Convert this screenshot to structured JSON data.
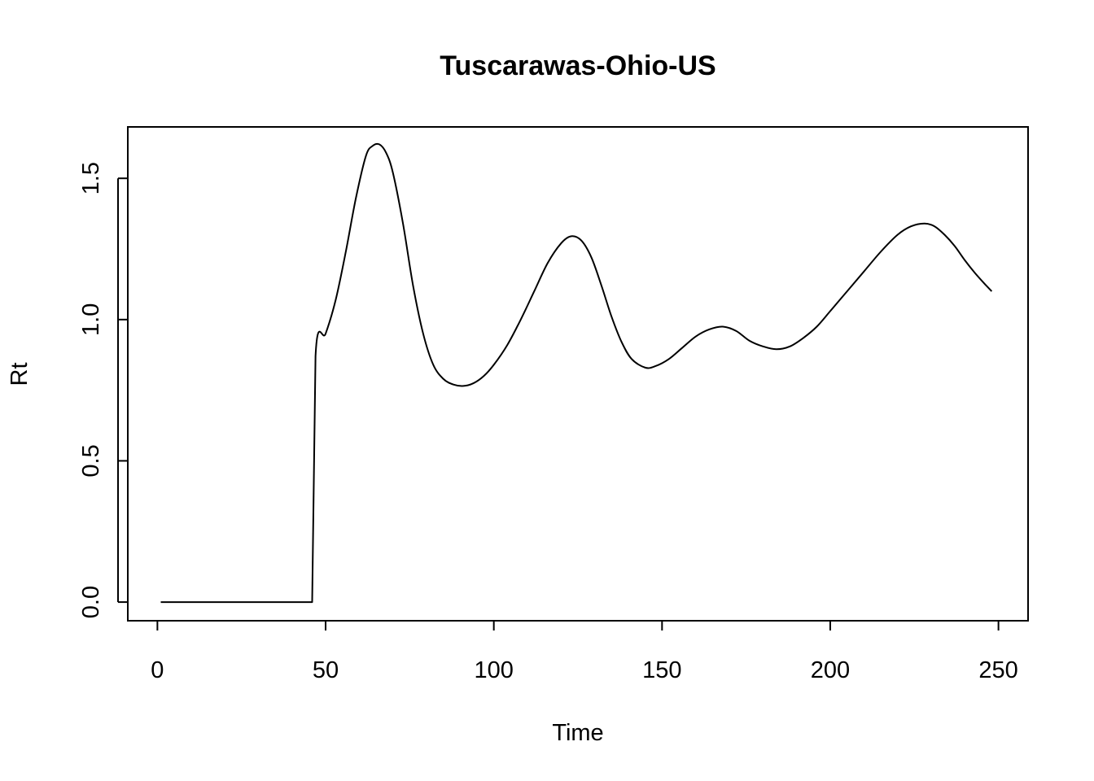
{
  "chart_data": {
    "type": "line",
    "title": "Tuscarawas-Ohio-US",
    "xlabel": "Time",
    "ylabel": "Rt",
    "xlim": [
      -8.8,
      258.8
    ],
    "ylim": [
      -0.066,
      1.682
    ],
    "x_ticks": [
      0,
      50,
      100,
      150,
      200,
      250
    ],
    "x_tick_labels": [
      "0",
      "50",
      "100",
      "150",
      "200",
      "250"
    ],
    "y_ticks": [
      0.0,
      0.5,
      1.0,
      1.5
    ],
    "y_tick_labels": [
      "0.0",
      "0.5",
      "1.0",
      "1.5"
    ],
    "grid": false,
    "legend": "none",
    "line_color": "#000000",
    "series": [
      {
        "x": [
          1,
          46,
          47,
          50,
          53,
          56,
          59,
          62,
          64,
          66,
          68,
          70,
          73,
          76,
          79,
          82,
          85,
          88,
          91,
          94,
          97,
          100,
          104,
          108,
          112,
          116,
          120,
          123,
          126,
          129,
          132,
          135,
          138,
          141,
          145,
          148,
          152,
          156,
          160,
          164,
          168,
          172,
          176,
          180,
          184,
          188,
          192,
          196,
          200,
          205,
          210,
          215,
          220,
          224,
          228,
          231,
          234,
          237,
          240,
          243,
          246,
          248
        ],
        "y": [
          0.0,
          0.0,
          0.87,
          0.95,
          1.07,
          1.24,
          1.43,
          1.58,
          1.615,
          1.62,
          1.59,
          1.52,
          1.34,
          1.12,
          0.95,
          0.84,
          0.79,
          0.77,
          0.765,
          0.775,
          0.8,
          0.84,
          0.91,
          1.0,
          1.1,
          1.2,
          1.27,
          1.295,
          1.28,
          1.22,
          1.12,
          1.01,
          0.92,
          0.86,
          0.83,
          0.835,
          0.86,
          0.9,
          0.94,
          0.965,
          0.975,
          0.96,
          0.925,
          0.905,
          0.895,
          0.905,
          0.935,
          0.975,
          1.03,
          1.1,
          1.17,
          1.24,
          1.3,
          1.33,
          1.34,
          1.33,
          1.3,
          1.26,
          1.21,
          1.165,
          1.125,
          1.1
        ]
      }
    ]
  }
}
